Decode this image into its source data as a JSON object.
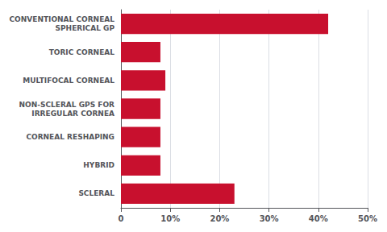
{
  "chart_data": {
    "type": "bar",
    "orientation": "horizontal",
    "categories": [
      "SCLERAL",
      "HYBRID",
      "CORNEAL RESHAPING",
      "NON-SCLERAL GPS FOR\nIRREGULAR CORNEA",
      "MULTIFOCAL CORNEAL",
      "TORIC CORNEAL",
      "CONVENTIONAL CORNEAL\nSPHERICAL GP"
    ],
    "values": [
      23,
      8,
      8,
      8,
      9,
      8,
      42
    ],
    "color": "#c8102e",
    "xlim": [
      0,
      50
    ],
    "xticks": [
      0,
      {
        "value": 10,
        "label": "10%"
      },
      {
        "value": 20,
        "label": "20%"
      },
      {
        "value": 30,
        "label": "30%"
      },
      {
        "value": 40,
        "label": "40%"
      },
      {
        "value": 50,
        "label": "50%"
      }
    ],
    "grid": true
  }
}
